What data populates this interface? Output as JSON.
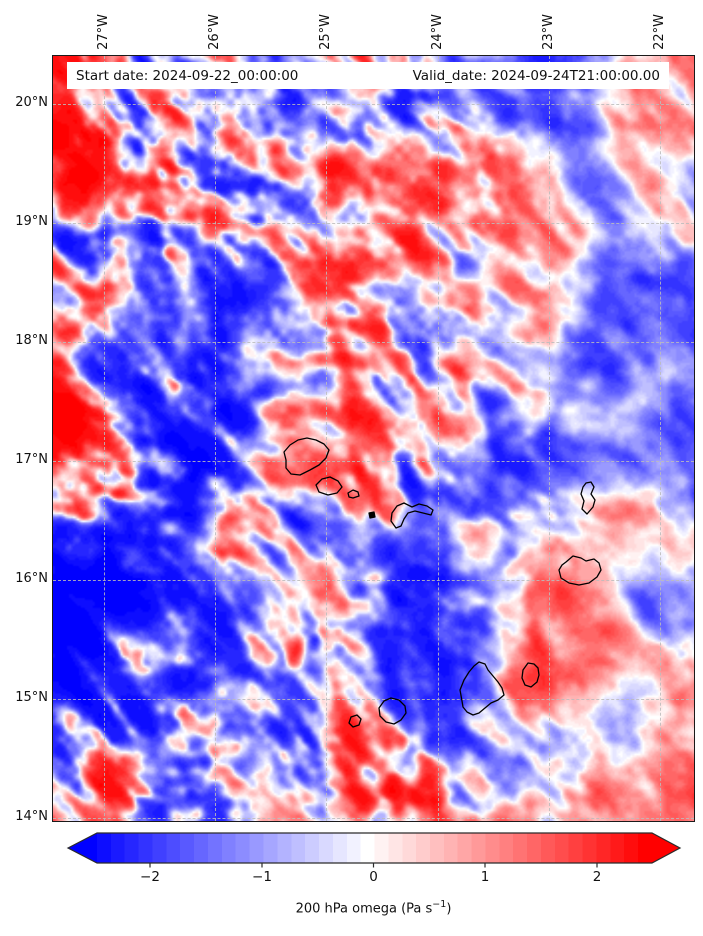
{
  "figure": {
    "start_label": "Start date: 2024-09-22_00:00:00",
    "valid_label": "Valid_date: 2024-09-24T21:00:00.00"
  },
  "axes": {
    "x_ticks": [
      "27°W",
      "26°W",
      "25°W",
      "24°W",
      "23°W",
      "22°W"
    ],
    "y_ticks": [
      "20°N",
      "19°N",
      "18°N",
      "17°N",
      "16°N",
      "15°N",
      "14°N"
    ]
  },
  "colorbar": {
    "tick_labels": [
      "−2",
      "−1",
      "0",
      "1",
      "2"
    ],
    "label_main": "200 hPa omega (Pa s",
    "label_sup": "−1",
    "label_end": ")"
  },
  "chart_data": {
    "type": "heatmap",
    "variable": "200 hPa omega",
    "units": "Pa s⁻¹",
    "start_date": "2024-09-22_00:00:00",
    "valid_date": "2024-09-24T21:00:00.00",
    "colormap": "bwr",
    "colormap_stops": [
      [
        0,
        "#0000ff"
      ],
      [
        0.5,
        "#ffffff"
      ],
      [
        1,
        "#ff0000"
      ]
    ],
    "vmin": -2.5,
    "vmax": 2.5,
    "levels": 40,
    "colorbar_ticks": [
      -2,
      -1,
      0,
      1,
      2
    ],
    "colorbar_extend": "both",
    "lon_ticks": [
      "27°W",
      "26°W",
      "25°W",
      "24°W",
      "23°W",
      "22°W"
    ],
    "lat_ticks": [
      "20°N",
      "19°N",
      "18°N",
      "17°N",
      "16°N",
      "15°N",
      "14°N"
    ],
    "extent": {
      "west_lon": -27.5,
      "east_lon": -21.7,
      "south_lat": 13.95,
      "north_lat": 20.4
    },
    "grid": {
      "style": "dashed",
      "on": true
    },
    "overlay": "Cape Verde islands coastlines",
    "islands": [
      {
        "name": "santo-antao",
        "points": [
          [
            233,
            404
          ],
          [
            231,
            396
          ],
          [
            237,
            389
          ],
          [
            245,
            384
          ],
          [
            254,
            382
          ],
          [
            263,
            384
          ],
          [
            271,
            388
          ],
          [
            276,
            394
          ],
          [
            273,
            402
          ],
          [
            266,
            409
          ],
          [
            257,
            414
          ],
          [
            247,
            419
          ],
          [
            238,
            418
          ],
          [
            233,
            412
          ]
        ]
      },
      {
        "name": "sao-vicente",
        "points": [
          [
            263,
            429
          ],
          [
            269,
            423
          ],
          [
            277,
            421
          ],
          [
            285,
            425
          ],
          [
            289,
            431
          ],
          [
            284,
            437
          ],
          [
            275,
            439
          ],
          [
            266,
            436
          ]
        ]
      },
      {
        "name": "santa-luzia",
        "points": [
          [
            295,
            437
          ],
          [
            300,
            434
          ],
          [
            305,
            436
          ],
          [
            306,
            440
          ],
          [
            300,
            442
          ],
          [
            296,
            441
          ]
        ]
      },
      {
        "name": "raso",
        "points": [
          [
            316,
            457
          ],
          [
            321,
            456
          ],
          [
            322,
            461
          ],
          [
            317,
            462
          ]
        ],
        "fill": true
      },
      {
        "name": "sao-nicolau",
        "points": [
          [
            339,
            457
          ],
          [
            344,
            450
          ],
          [
            351,
            447
          ],
          [
            359,
            451
          ],
          [
            366,
            448
          ],
          [
            374,
            450
          ],
          [
            380,
            454
          ],
          [
            378,
            459
          ],
          [
            370,
            457
          ],
          [
            362,
            455
          ],
          [
            355,
            457
          ],
          [
            351,
            463
          ],
          [
            348,
            470
          ],
          [
            343,
            472
          ],
          [
            338,
            465
          ]
        ]
      },
      {
        "name": "sal",
        "points": [
          [
            533,
            427
          ],
          [
            538,
            426
          ],
          [
            541,
            431
          ],
          [
            538,
            438
          ],
          [
            542,
            444
          ],
          [
            540,
            451
          ],
          [
            534,
            458
          ],
          [
            529,
            453
          ],
          [
            531,
            445
          ],
          [
            528,
            438
          ],
          [
            530,
            431
          ]
        ]
      },
      {
        "name": "boa-vista",
        "points": [
          [
            513,
            506
          ],
          [
            520,
            500
          ],
          [
            528,
            502
          ],
          [
            533,
            505
          ],
          [
            541,
            503
          ],
          [
            546,
            507
          ],
          [
            548,
            514
          ],
          [
            544,
            521
          ],
          [
            536,
            527
          ],
          [
            526,
            529
          ],
          [
            516,
            527
          ],
          [
            508,
            522
          ],
          [
            506,
            514
          ],
          [
            509,
            509
          ]
        ]
      },
      {
        "name": "maio",
        "points": [
          [
            475,
            607
          ],
          [
            481,
            608
          ],
          [
            485,
            612
          ],
          [
            486,
            619
          ],
          [
            484,
            626
          ],
          [
            478,
            631
          ],
          [
            472,
            629
          ],
          [
            469,
            622
          ],
          [
            470,
            614
          ]
        ]
      },
      {
        "name": "santiago",
        "points": [
          [
            409,
            645
          ],
          [
            407,
            634
          ],
          [
            411,
            624
          ],
          [
            416,
            616
          ],
          [
            421,
            610
          ],
          [
            426,
            606
          ],
          [
            432,
            608
          ],
          [
            435,
            614
          ],
          [
            440,
            620
          ],
          [
            445,
            626
          ],
          [
            449,
            632
          ],
          [
            451,
            639
          ],
          [
            445,
            644
          ],
          [
            438,
            647
          ],
          [
            432,
            652
          ],
          [
            426,
            657
          ],
          [
            420,
            659
          ],
          [
            414,
            656
          ],
          [
            410,
            651
          ]
        ]
      },
      {
        "name": "fogo",
        "points": [
          [
            338,
            642
          ],
          [
            346,
            644
          ],
          [
            352,
            650
          ],
          [
            353,
            657
          ],
          [
            348,
            664
          ],
          [
            341,
            668
          ],
          [
            333,
            666
          ],
          [
            327,
            660
          ],
          [
            326,
            652
          ],
          [
            331,
            645
          ]
        ]
      },
      {
        "name": "brava",
        "points": [
          [
            298,
            661
          ],
          [
            304,
            659
          ],
          [
            308,
            663
          ],
          [
            306,
            669
          ],
          [
            300,
            671
          ],
          [
            296,
            667
          ]
        ]
      }
    ],
    "field_hints": {
      "seed": 7,
      "global_bias": -0.04,
      "contrast": 2.1,
      "amp_blobs": [
        [
          0.15,
          0.1,
          0.22,
          0.1,
          0,
          0.55
        ],
        [
          0.1,
          0.78,
          0.14,
          0.16,
          0,
          0.6
        ],
        [
          0.05,
          0.52,
          0.08,
          0.1,
          0,
          0.5
        ],
        [
          0.52,
          0.95,
          0.12,
          0.05,
          -0.7,
          0.5
        ],
        [
          0.33,
          0.3,
          0.25,
          0.2,
          0,
          0.25
        ]
      ],
      "bias_blobs": [
        [
          0.12,
          0.8,
          0.1,
          0.07,
          0,
          -0.5
        ],
        [
          0.22,
          0.7,
          0.16,
          0.035,
          0.1,
          -0.35
        ],
        [
          0.32,
          0.66,
          0.3,
          0.06,
          0,
          -0.18
        ],
        [
          0.55,
          0.96,
          0.1,
          0.035,
          -0.8,
          0.55
        ],
        [
          0.93,
          0.6,
          0.085,
          0.03,
          -0.75,
          0.4
        ],
        [
          0.86,
          0.78,
          0.06,
          0.05,
          0,
          0.3
        ],
        [
          0.98,
          0.9,
          0.04,
          0.12,
          0,
          0.35
        ],
        [
          0.55,
          0.42,
          0.28,
          0.25,
          0,
          -0.12
        ],
        [
          0.8,
          0.25,
          0.2,
          0.18,
          0,
          -0.1
        ],
        [
          0.92,
          0.08,
          0.07,
          0.05,
          0,
          0.3
        ],
        [
          0.06,
          0.55,
          0.05,
          0.06,
          0,
          0.3
        ]
      ]
    }
  }
}
